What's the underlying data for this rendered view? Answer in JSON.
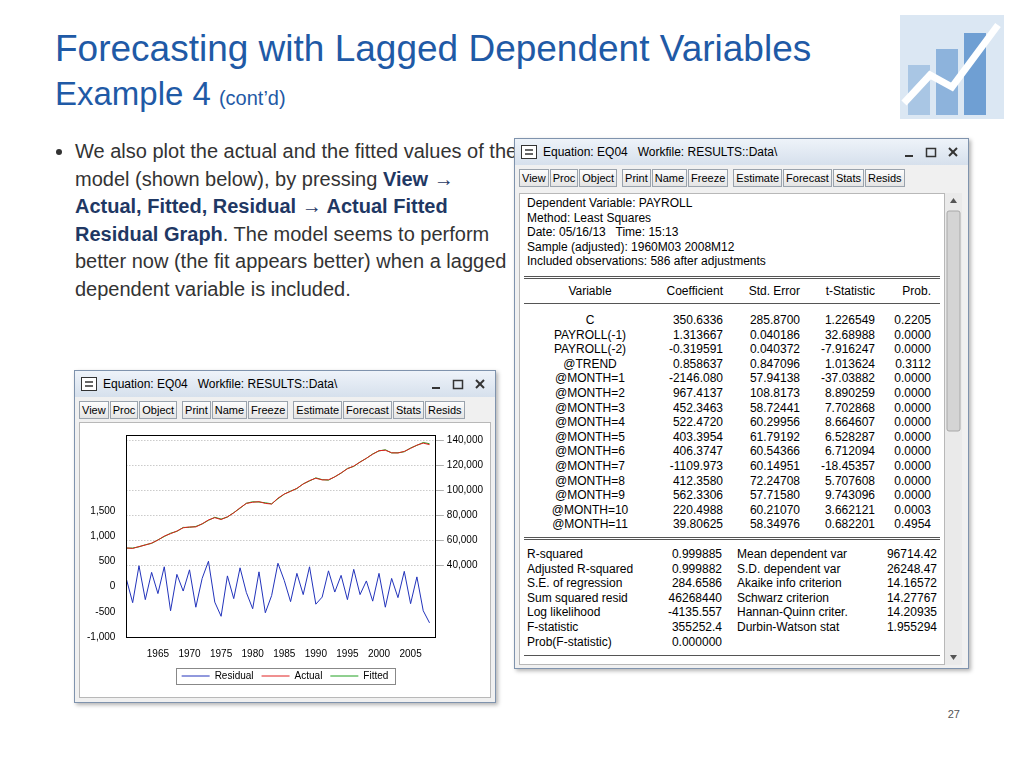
{
  "slide": {
    "title": "Forecasting with Lagged Dependent Variables",
    "subtitle": "Example 4",
    "subtitle_note": "(cont’d)",
    "bullet": [
      {
        "text": "We also plot the actual and the fitted values of the model (shown below), by pressing ",
        "bold": false
      },
      {
        "text": "View → Actual, Fitted, Residual → Actual Fitted Residual Graph",
        "bold": true
      },
      {
        "text": ". The model seems to perform better now (the fit appears better) when a lagged dependent variable is included.",
        "bold": false
      }
    ],
    "page_number": "27"
  },
  "equation_window": {
    "title": "Equation: EQ04   Workfile: RESULTS::Data\\",
    "buttons": [
      [
        "View",
        "Proc",
        "Object"
      ],
      [
        "Print",
        "Name",
        "Freeze"
      ],
      [
        "Estimate",
        "Forecast",
        "Stats",
        "Resids"
      ]
    ],
    "header": [
      "Dependent Variable: PAYROLL",
      "Method: Least Squares",
      "Date: 05/16/13   Time: 15:13",
      "Sample (adjusted): 1960M03 2008M12",
      "Included observations: 586 after adjustments"
    ],
    "table": {
      "columns": [
        "Variable",
        "Coefficient",
        "Std. Error",
        "t-Statistic",
        "Prob."
      ],
      "rows": [
        [
          "C",
          "350.6336",
          "285.8700",
          "1.226549",
          "0.2205"
        ],
        [
          "PAYROLL(-1)",
          "1.313667",
          "0.040186",
          "32.68988",
          "0.0000"
        ],
        [
          "PAYROLL(-2)",
          "-0.319591",
          "0.040372",
          "-7.916247",
          "0.0000"
        ],
        [
          "@TREND",
          "0.858637",
          "0.847096",
          "1.013624",
          "0.3112"
        ],
        [
          "@MONTH=1",
          "-2146.080",
          "57.94138",
          "-37.03882",
          "0.0000"
        ],
        [
          "@MONTH=2",
          "967.4137",
          "108.8173",
          "8.890259",
          "0.0000"
        ],
        [
          "@MONTH=3",
          "452.3463",
          "58.72441",
          "7.702868",
          "0.0000"
        ],
        [
          "@MONTH=4",
          "522.4720",
          "60.29956",
          "8.664607",
          "0.0000"
        ],
        [
          "@MONTH=5",
          "403.3954",
          "61.79192",
          "6.528287",
          "0.0000"
        ],
        [
          "@MONTH=6",
          "406.3747",
          "60.54366",
          "6.712094",
          "0.0000"
        ],
        [
          "@MONTH=7",
          "-1109.973",
          "60.14951",
          "-18.45357",
          "0.0000"
        ],
        [
          "@MONTH=8",
          "412.3580",
          "72.24708",
          "5.707608",
          "0.0000"
        ],
        [
          "@MONTH=9",
          "562.3306",
          "57.71580",
          "9.743096",
          "0.0000"
        ],
        [
          "@MONTH=10",
          "220.4988",
          "60.21070",
          "3.662121",
          "0.0003"
        ],
        [
          "@MONTH=11",
          "39.80625",
          "58.34976",
          "0.682201",
          "0.4954"
        ]
      ]
    },
    "stats": [
      [
        "R-squared",
        "0.999885",
        "Mean dependent var",
        "96714.42"
      ],
      [
        "Adjusted R-squared",
        "0.999882",
        "S.D. dependent var",
        "26248.47"
      ],
      [
        "S.E. of regression",
        "284.6586",
        "Akaike info criterion",
        "14.16572"
      ],
      [
        "Sum squared resid",
        "46268440",
        "Schwarz criterion",
        "14.27767"
      ],
      [
        "Log likelihood",
        "-4135.557",
        "Hannan-Quinn criter.",
        "14.20935"
      ],
      [
        "F-statistic",
        "355252.4",
        "Durbin-Watson stat",
        "1.955294"
      ],
      [
        "Prob(F-statistic)",
        "0.000000"
      ]
    ]
  },
  "chart_window": {
    "title": "Equation: EQ04   Workfile: RESULTS::Data\\",
    "buttons": [
      [
        "View",
        "Proc",
        "Object"
      ],
      [
        "Print",
        "Name",
        "Freeze"
      ],
      [
        "Estimate",
        "Forecast",
        "Stats",
        "Resids"
      ]
    ]
  },
  "chart_data": {
    "type": "line",
    "x": [
      1960,
      1961,
      1962,
      1963,
      1964,
      1965,
      1966,
      1967,
      1968,
      1969,
      1970,
      1971,
      1972,
      1973,
      1974,
      1975,
      1976,
      1977,
      1978,
      1979,
      1980,
      1981,
      1982,
      1983,
      1984,
      1985,
      1986,
      1987,
      1988,
      1989,
      1990,
      1991,
      1992,
      1993,
      1994,
      1995,
      1996,
      1997,
      1998,
      1999,
      2000,
      2001,
      2002,
      2003,
      2004,
      2005,
      2006,
      2007,
      2008
    ],
    "series": [
      {
        "name": "Residual",
        "color": "#2233bb",
        "values": [
          150,
          -320,
          410,
          -260,
          280,
          -140,
          390,
          -480,
          240,
          -90,
          330,
          -410,
          160,
          500,
          -310,
          -590,
          210,
          -240,
          370,
          -120,
          -440,
          290,
          -520,
          -180,
          460,
          120,
          -300,
          260,
          -160,
          390,
          -350,
          -210,
          310,
          -110,
          220,
          -260,
          340,
          -160,
          110,
          -290,
          260,
          -410,
          160,
          -220,
          300,
          -340,
          190,
          -480,
          -720
        ]
      },
      {
        "name": "Actual",
        "color": "#e02020",
        "axis": "y2",
        "values": [
          53700,
          53300,
          54800,
          56000,
          57600,
          60000,
          63200,
          65100,
          67200,
          69800,
          70500,
          70500,
          73000,
          76100,
          77900,
          76400,
          78600,
          81700,
          85800,
          89300,
          90200,
          90700,
          89300,
          88800,
          93500,
          96800,
          98900,
          101400,
          104800,
          107600,
          109400,
          108100,
          108200,
          110500,
          113700,
          117000,
          119200,
          122300,
          125400,
          128600,
          131500,
          131800,
          129800,
          129600,
          130900,
          133300,
          135900,
          137500,
          136300
        ]
      },
      {
        "name": "Fitted",
        "color": "#20a020",
        "axis": "y2",
        "values": [
          53550,
          53620,
          54590,
          56260,
          57320,
          60140,
          62810,
          65480,
          66960,
          70090,
          70170,
          70910,
          72840,
          75790,
          78220,
          76810,
          78390,
          81940,
          85430,
          89420,
          90640,
          90410,
          89820,
          88980,
          93040,
          96680,
          99200,
          101140,
          104960,
          107210,
          109750,
          108310,
          107890,
          110610,
          113480,
          117260,
          118860,
          122460,
          125290,
          128890,
          131240,
          132210,
          129640,
          129820,
          130600,
          133640,
          135710,
          137980,
          137020
        ]
      }
    ],
    "xlim": [
      1960,
      2009
    ],
    "xticks": [
      1965,
      1970,
      1975,
      1980,
      1985,
      1990,
      1995,
      2000,
      2005
    ],
    "ylim": [
      -1000,
      3000
    ],
    "yticks": [
      {
        "value": -1000,
        "label": "-1,000"
      },
      -500,
      0,
      500,
      {
        "value": 1000,
        "label": "1,000"
      },
      {
        "value": 1500,
        "label": "1,500"
      }
    ],
    "y2lim": [
      -17500,
      144000
    ],
    "y2ticks": [
      {
        "value": 40000,
        "label": "40,000"
      },
      {
        "value": 60000,
        "label": "60,000"
      },
      {
        "value": 80000,
        "label": "80,000"
      },
      {
        "value": 100000,
        "label": "100,000"
      },
      {
        "value": 120000,
        "label": "120,000"
      },
      {
        "value": 140000,
        "label": "140,000"
      }
    ],
    "grid": true,
    "legend": "bottom"
  }
}
